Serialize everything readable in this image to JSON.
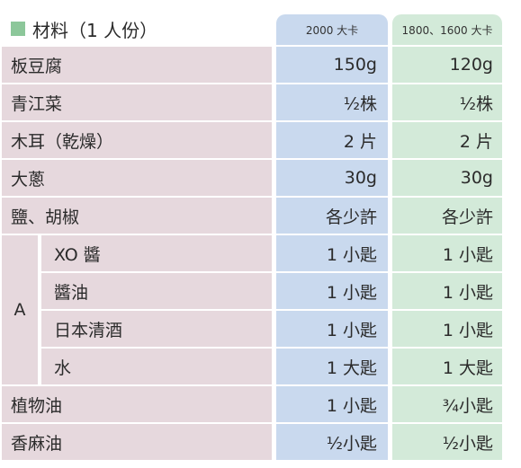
{
  "title": "材料（1 人份）",
  "columns": [
    "2000 大卡",
    "1800、1600 大卡"
  ],
  "rows": [
    {
      "name": "板豆腐",
      "v1": "150g",
      "v2": "120g"
    },
    {
      "name": "青江菜",
      "v1": "½株",
      "v2": "½株"
    },
    {
      "name": "木耳（乾燥）",
      "v1": "2 片",
      "v2": "2 片"
    },
    {
      "name": "大蔥",
      "v1": "30g",
      "v2": "30g"
    },
    {
      "name": "鹽、胡椒",
      "v1": "各少許",
      "v2": "各少許"
    }
  ],
  "group": {
    "label": "A",
    "items": [
      {
        "name": "XO 醬",
        "v1": "1 小匙",
        "v2": "1 小匙"
      },
      {
        "name": "醬油",
        "v1": "1 小匙",
        "v2": "1 小匙"
      },
      {
        "name": "日本清酒",
        "v1": "1 小匙",
        "v2": "1 小匙"
      },
      {
        "name": "水",
        "v1": "1 大匙",
        "v2": "1 大匙"
      }
    ]
  },
  "tail_rows": [
    {
      "name": "植物油",
      "v1": "1 小匙",
      "v2": "¾小匙"
    },
    {
      "name": "香麻油",
      "v1": "½小匙",
      "v2": "½小匙"
    }
  ],
  "colors": {
    "name_bg": "#e6d8dd",
    "col1_bg": "#c9d9ee",
    "col2_bg": "#d3ead9",
    "title_square": "#8cc79a"
  }
}
